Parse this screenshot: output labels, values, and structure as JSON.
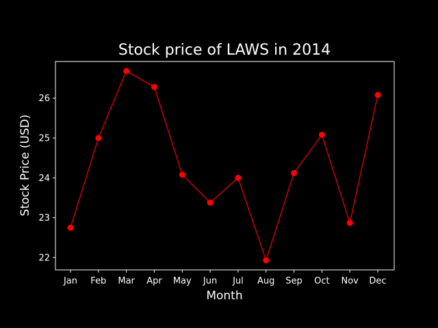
{
  "chart_data": {
    "type": "line",
    "title": "Stock price of LAWS in 2014",
    "xlabel": "Month",
    "ylabel": "Stock Price (USD)",
    "categories": [
      "Jan",
      "Feb",
      "Mar",
      "Apr",
      "May",
      "Jun",
      "Jul",
      "Aug",
      "Sep",
      "Oct",
      "Nov",
      "Dec"
    ],
    "series": [
      {
        "values": [
          22.75,
          25.0,
          26.68,
          26.28,
          24.08,
          23.38,
          24.0,
          21.93,
          24.12,
          25.08,
          22.87,
          26.08
        ]
      }
    ],
    "yticks": [
      22,
      23,
      24,
      25,
      26
    ],
    "ylim": [
      21.69,
      26.92
    ],
    "grid": false,
    "legend": "none",
    "colors": {
      "background": "#000000",
      "axes": "#ffffff",
      "text": "#ffffff",
      "line": "#ff0000",
      "marker": "#ff0000"
    }
  }
}
